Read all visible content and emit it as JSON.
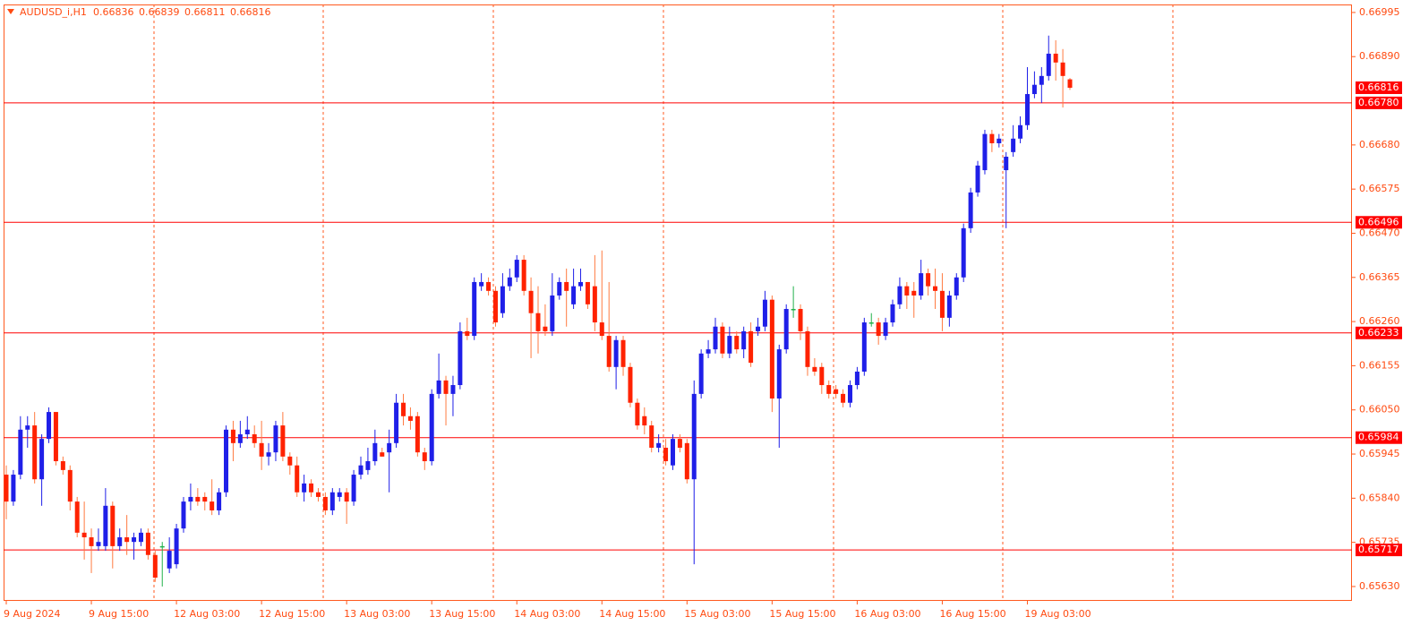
{
  "chart_data": {
    "type": "candlestick",
    "title": "AUDUSD_i,H1",
    "up_color": "#1f1fe8",
    "down_color": "#ff2200",
    "doji_color": "#22b14c",
    "level_color": "#ff0000",
    "ylim": [
      0.65598,
      0.67014
    ],
    "yticks": [
      0.66995,
      {
        "value": 0.6689,
        "label": "0.66890"
      },
      {
        "value": 0.6668,
        "label": "0.66680"
      },
      0.66575,
      {
        "value": 0.6647,
        "label": "0.66470"
      },
      0.66365,
      {
        "value": 0.6626,
        "label": "0.66260"
      },
      0.66155,
      {
        "value": 0.6605,
        "label": "0.66050"
      },
      0.65945,
      {
        "value": 0.6584,
        "label": "0.65840"
      },
      0.65735,
      {
        "value": 0.6563,
        "label": "0.65630"
      }
    ],
    "levels": [
      {
        "value": 0.6678,
        "label": "0.66780"
      },
      {
        "value": 0.66496,
        "label": "0.66496"
      },
      {
        "value": 0.66233,
        "label": "0.66233"
      },
      {
        "value": 0.65984,
        "label": "0.65984"
      },
      {
        "value": 0.65717,
        "label": "0.65717"
      }
    ],
    "xticks": [
      {
        "value": 0,
        "label": "9 Aug 2024"
      },
      {
        "value": 12,
        "label": "9 Aug 15:00"
      },
      {
        "value": 24,
        "label": "12 Aug 03:00"
      },
      {
        "value": 36,
        "label": "12 Aug 15:00"
      },
      {
        "value": 48,
        "label": "13 Aug 03:00"
      },
      {
        "value": 60,
        "label": "13 Aug 15:00"
      },
      {
        "value": 72,
        "label": "14 Aug 03:00"
      },
      {
        "value": 84,
        "label": "14 Aug 15:00"
      },
      {
        "value": 96,
        "label": "15 Aug 03:00"
      },
      {
        "value": 108,
        "label": "15 Aug 15:00"
      },
      {
        "value": 120,
        "label": "16 Aug 03:00"
      },
      {
        "value": 132,
        "label": "16 Aug 15:00"
      },
      {
        "value": 144,
        "label": "19 Aug 03:00"
      }
    ],
    "candles": [
      [
        0.65896,
        0.65918,
        0.6579,
        0.65832
      ],
      [
        0.65832,
        0.65907,
        0.65822,
        0.65896
      ],
      [
        0.65896,
        0.66035,
        0.65885,
        0.66003
      ],
      [
        0.66003,
        0.66035,
        0.6596,
        0.66013
      ],
      [
        0.66013,
        0.66045,
        0.65875,
        0.65885
      ],
      [
        0.65885,
        0.65992,
        0.65822,
        0.65981
      ],
      [
        0.65981,
        0.66056,
        0.65971,
        0.66045
      ],
      [
        0.66045,
        0.66045,
        0.65918,
        0.65928
      ],
      [
        0.65928,
        0.65939,
        0.65896,
        0.65907
      ],
      [
        0.65907,
        0.65918,
        0.65811,
        0.65832
      ],
      [
        0.65832,
        0.65843,
        0.65747,
        0.65758
      ],
      [
        0.65758,
        0.65832,
        0.65694,
        0.65747
      ],
      [
        0.65747,
        0.65768,
        0.65662,
        0.65726
      ],
      [
        0.65726,
        0.65768,
        0.65715,
        0.65736
      ],
      [
        0.65726,
        0.65864,
        0.65715,
        0.65822
      ],
      [
        0.65822,
        0.65832,
        0.65673,
        0.65726
      ],
      [
        0.65726,
        0.65768,
        0.65715,
        0.65747
      ],
      [
        0.65747,
        0.658,
        0.65705,
        0.65736
      ],
      [
        0.65736,
        0.65758,
        0.65694,
        0.65747
      ],
      [
        0.65736,
        0.65768,
        0.65726,
        0.65758
      ],
      [
        0.65758,
        0.65768,
        0.65694,
        0.65705
      ],
      [
        0.65705,
        0.65715,
        0.65641,
        0.65651
      ],
      [
        0.65726,
        0.65736,
        0.6563,
        0.65726
      ],
      [
        0.65673,
        0.65747,
        0.65662,
        0.65715
      ],
      [
        0.65683,
        0.65779,
        0.65673,
        0.65768
      ],
      [
        0.65768,
        0.65843,
        0.65758,
        0.65832
      ],
      [
        0.65832,
        0.65875,
        0.65811,
        0.65843
      ],
      [
        0.65843,
        0.65864,
        0.65822,
        0.65832
      ],
      [
        0.65843,
        0.65854,
        0.65811,
        0.65832
      ],
      [
        0.65832,
        0.65885,
        0.658,
        0.65811
      ],
      [
        0.65811,
        0.65864,
        0.658,
        0.65854
      ],
      [
        0.65854,
        0.66013,
        0.65843,
        0.66003
      ],
      [
        0.66003,
        0.66024,
        0.65928,
        0.65971
      ],
      [
        0.65971,
        0.66024,
        0.6596,
        0.65992
      ],
      [
        0.65992,
        0.66035,
        0.65981,
        0.66003
      ],
      [
        0.65992,
        0.66013,
        0.6596,
        0.65971
      ],
      [
        0.65971,
        0.66024,
        0.65907,
        0.65939
      ],
      [
        0.65939,
        0.65971,
        0.65918,
        0.65949
      ],
      [
        0.65949,
        0.66024,
        0.65928,
        0.66013
      ],
      [
        0.66013,
        0.66045,
        0.65928,
        0.65939
      ],
      [
        0.65939,
        0.65949,
        0.65896,
        0.65918
      ],
      [
        0.65918,
        0.65939,
        0.65843,
        0.65854
      ],
      [
        0.65854,
        0.65896,
        0.65832,
        0.65875
      ],
      [
        0.65875,
        0.65885,
        0.65843,
        0.65854
      ],
      [
        0.65854,
        0.65864,
        0.65832,
        0.65843
      ],
      [
        0.65843,
        0.65854,
        0.658,
        0.65811
      ],
      [
        0.65811,
        0.65864,
        0.658,
        0.65854
      ],
      [
        0.65843,
        0.65864,
        0.65832,
        0.65854
      ],
      [
        0.65854,
        0.65864,
        0.65779,
        0.65832
      ],
      [
        0.65832,
        0.65907,
        0.65822,
        0.65896
      ],
      [
        0.65896,
        0.65939,
        0.65885,
        0.65918
      ],
      [
        0.65907,
        0.6596,
        0.65896,
        0.65928
      ],
      [
        0.65928,
        0.66003,
        0.65918,
        0.65971
      ],
      [
        0.65949,
        0.6596,
        0.65939,
        0.65939
      ],
      [
        0.65949,
        0.66003,
        0.65854,
        0.65971
      ],
      [
        0.65971,
        0.66088,
        0.6596,
        0.66067
      ],
      [
        0.66067,
        0.66088,
        0.66013,
        0.66035
      ],
      [
        0.66035,
        0.66056,
        0.66003,
        0.66024
      ],
      [
        0.66035,
        0.66045,
        0.65939,
        0.65949
      ],
      [
        0.65949,
        0.6596,
        0.65907,
        0.65928
      ],
      [
        0.65928,
        0.66099,
        0.65918,
        0.66088
      ],
      [
        0.66088,
        0.66184,
        0.66077,
        0.6612
      ],
      [
        0.6612,
        0.66131,
        0.66013,
        0.66088
      ],
      [
        0.66088,
        0.66131,
        0.66035,
        0.66109
      ],
      [
        0.66109,
        0.66258,
        0.66099,
        0.66237
      ],
      [
        0.66237,
        0.66269,
        0.66216,
        0.66226
      ],
      [
        0.66226,
        0.66365,
        0.66216,
        0.66354
      ],
      [
        0.66344,
        0.66375,
        0.66333,
        0.66354
      ],
      [
        0.66354,
        0.66365,
        0.66322,
        0.66333
      ],
      [
        0.66333,
        0.66344,
        0.66248,
        0.66258
      ],
      [
        0.6628,
        0.66375,
        0.66269,
        0.66344
      ],
      [
        0.66344,
        0.66386,
        0.66333,
        0.66365
      ],
      [
        0.66365,
        0.66418,
        0.66354,
        0.66407
      ],
      [
        0.66407,
        0.66418,
        0.66322,
        0.66333
      ],
      [
        0.66333,
        0.66365,
        0.66173,
        0.6628
      ],
      [
        0.6628,
        0.66344,
        0.66184,
        0.66237
      ],
      [
        0.66248,
        0.66301,
        0.66226,
        0.66237
      ],
      [
        0.66237,
        0.66375,
        0.66226,
        0.66322
      ],
      [
        0.66322,
        0.66365,
        0.66312,
        0.66354
      ],
      [
        0.66354,
        0.66386,
        0.66248,
        0.66333
      ],
      [
        0.66301,
        0.66386,
        0.6629,
        0.66344
      ],
      [
        0.66344,
        0.66386,
        0.66333,
        0.66354
      ],
      [
        0.66354,
        0.66354,
        0.6629,
        0.66301
      ],
      [
        0.66344,
        0.66418,
        0.66237,
        0.66258
      ],
      [
        0.66258,
        0.66429,
        0.66216,
        0.66226
      ],
      [
        0.66226,
        0.66354,
        0.66141,
        0.66152
      ],
      [
        0.66152,
        0.66226,
        0.66099,
        0.66216
      ],
      [
        0.66216,
        0.66226,
        0.66131,
        0.66152
      ],
      [
        0.66152,
        0.66162,
        0.66056,
        0.66067
      ],
      [
        0.66067,
        0.66077,
        0.66003,
        0.66013
      ],
      [
        0.66035,
        0.66056,
        0.65992,
        0.66013
      ],
      [
        0.66013,
        0.66024,
        0.65949,
        0.6596
      ],
      [
        0.6596,
        0.65992,
        0.65949,
        0.65971
      ],
      [
        0.6596,
        0.65981,
        0.65918,
        0.65928
      ],
      [
        0.65918,
        0.65992,
        0.65907,
        0.65981
      ],
      [
        0.65981,
        0.65992,
        0.65949,
        0.6596
      ],
      [
        0.65971,
        0.65981,
        0.65875,
        0.65885
      ],
      [
        0.65885,
        0.6612,
        0.65683,
        0.66088
      ],
      [
        0.66088,
        0.66194,
        0.66077,
        0.66184
      ],
      [
        0.66184,
        0.66216,
        0.66173,
        0.66194
      ],
      [
        0.66194,
        0.66269,
        0.66184,
        0.66248
      ],
      [
        0.66248,
        0.66258,
        0.66173,
        0.66184
      ],
      [
        0.66184,
        0.66248,
        0.66173,
        0.66226
      ],
      [
        0.66226,
        0.66237,
        0.66184,
        0.66194
      ],
      [
        0.66194,
        0.66248,
        0.66173,
        0.66237
      ],
      [
        0.66237,
        0.66258,
        0.66152,
        0.66162
      ],
      [
        0.66237,
        0.66269,
        0.66226,
        0.66248
      ],
      [
        0.66248,
        0.66333,
        0.66237,
        0.66312
      ],
      [
        0.66312,
        0.66322,
        0.66045,
        0.66077
      ],
      [
        0.66077,
        0.66205,
        0.6596,
        0.66194
      ],
      [
        0.66194,
        0.66301,
        0.66184,
        0.6629
      ],
      [
        0.6629,
        0.66344,
        0.66269,
        0.6629
      ],
      [
        0.6629,
        0.66301,
        0.66216,
        0.66237
      ],
      [
        0.66237,
        0.66248,
        0.66131,
        0.66152
      ],
      [
        0.66152,
        0.66173,
        0.66131,
        0.66141
      ],
      [
        0.66152,
        0.66162,
        0.66088,
        0.66109
      ],
      [
        0.66109,
        0.6612,
        0.66077,
        0.66088
      ],
      [
        0.66099,
        0.66109,
        0.66077,
        0.66088
      ],
      [
        0.66088,
        0.66099,
        0.66056,
        0.66067
      ],
      [
        0.66067,
        0.6612,
        0.66056,
        0.66109
      ],
      [
        0.66109,
        0.66152,
        0.66099,
        0.66141
      ],
      [
        0.66141,
        0.66269,
        0.66131,
        0.66258
      ],
      [
        0.66258,
        0.6628,
        0.66248,
        0.66258
      ],
      [
        0.66258,
        0.66269,
        0.66205,
        0.66226
      ],
      [
        0.66226,
        0.66269,
        0.66216,
        0.66258
      ],
      [
        0.66258,
        0.66312,
        0.66248,
        0.66301
      ],
      [
        0.66301,
        0.66365,
        0.6629,
        0.66344
      ],
      [
        0.66344,
        0.66354,
        0.6629,
        0.66322
      ],
      [
        0.66333,
        0.66354,
        0.66269,
        0.66322
      ],
      [
        0.66322,
        0.66407,
        0.66312,
        0.66375
      ],
      [
        0.66375,
        0.66386,
        0.66322,
        0.66344
      ],
      [
        0.66344,
        0.66386,
        0.6629,
        0.66333
      ],
      [
        0.66333,
        0.66375,
        0.66237,
        0.66269
      ],
      [
        0.66269,
        0.66333,
        0.66248,
        0.66322
      ],
      [
        0.66322,
        0.66375,
        0.66312,
        0.66365
      ],
      [
        0.66365,
        0.66493,
        0.66354,
        0.66482
      ],
      [
        0.66482,
        0.66578,
        0.66471,
        0.66567
      ],
      [
        0.66567,
        0.66642,
        0.66557,
        0.66631
      ],
      [
        0.6662,
        0.66716,
        0.6661,
        0.66706
      ],
      [
        0.66706,
        0.66716,
        0.66663,
        0.66684
      ],
      [
        0.66684,
        0.66706,
        0.66674,
        0.66695
      ],
      [
        0.6662,
        0.66663,
        0.66482,
        0.66652
      ],
      [
        0.66663,
        0.66727,
        0.66652,
        0.66695
      ],
      [
        0.66695,
        0.66748,
        0.66684,
        0.66727
      ],
      [
        0.66727,
        0.66865,
        0.66716,
        0.66801
      ],
      [
        0.66801,
        0.66855,
        0.66791,
        0.66823
      ],
      [
        0.66823,
        0.66865,
        0.6678,
        0.66844
      ],
      [
        0.66844,
        0.6694,
        0.66833,
        0.66897
      ],
      [
        0.66897,
        0.66929,
        0.66833,
        0.66876
      ],
      [
        0.66876,
        0.66908,
        0.66769,
        0.66844
      ],
      [
        0.66836,
        0.66839,
        0.66811,
        0.66816
      ]
    ]
  }
}
